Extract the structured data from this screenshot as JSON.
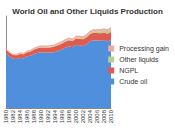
{
  "chart_data": {
    "type": "area",
    "title": "World Oil and Other Liquids Production",
    "categories": [
      "1980",
      null,
      "1982",
      null,
      "1984",
      null,
      "1986",
      null,
      "1988",
      null,
      "1990",
      null,
      "1992",
      null,
      "1994",
      null,
      "1996",
      null,
      "1998",
      null,
      "2000",
      null,
      "2002",
      null,
      "2004",
      null,
      "2006",
      null,
      "2008",
      null,
      "2010"
    ],
    "series": [
      {
        "name": "Crude oil",
        "color": "#4f8fdc",
        "values": [
          59.6,
          56.1,
          53.5,
          53.3,
          54.5,
          53.9,
          56.2,
          56.7,
          58.7,
          59.9,
          60.5,
          60.2,
          60.2,
          60.2,
          61.0,
          62.3,
          63.7,
          65.7,
          66.9,
          65.9,
          68.5,
          68.1,
          67.2,
          69.4,
          72.5,
          73.7,
          73.5,
          73.0,
          73.8,
          72.3,
          74.0
        ]
      },
      {
        "name": "NGPL",
        "color": "#e05a4e",
        "values": [
          3.9,
          4.0,
          4.0,
          4.1,
          4.3,
          4.4,
          4.5,
          4.6,
          4.8,
          5.0,
          5.2,
          5.4,
          5.6,
          5.8,
          6.0,
          6.2,
          6.4,
          6.6,
          6.7,
          6.8,
          7.1,
          7.3,
          7.4,
          7.6,
          7.8,
          8.0,
          8.1,
          8.2,
          8.4,
          8.5,
          8.9
        ]
      },
      {
        "name": "Other liquids",
        "color": "#b9cf8a",
        "values": [
          0.4,
          0.4,
          0.5,
          0.5,
          0.6,
          0.6,
          0.6,
          0.6,
          0.6,
          0.7,
          0.7,
          0.7,
          0.7,
          0.8,
          0.8,
          0.9,
          0.9,
          0.9,
          1.0,
          1.0,
          1.1,
          1.2,
          1.3,
          1.4,
          1.5,
          1.7,
          1.9,
          2.0,
          2.3,
          2.5,
          2.7
        ]
      },
      {
        "name": "Processing gain",
        "color": "#f2a7a0",
        "values": [
          1.0,
          1.0,
          1.1,
          1.1,
          1.1,
          1.2,
          1.2,
          1.3,
          1.3,
          1.4,
          1.4,
          1.5,
          1.5,
          1.6,
          1.6,
          1.7,
          1.7,
          1.8,
          1.8,
          1.9,
          1.9,
          2.0,
          2.0,
          2.1,
          2.1,
          2.2,
          2.2,
          2.3,
          2.3,
          2.3,
          2.4
        ]
      }
    ],
    "ylim": [
      0,
      100
    ],
    "stacked": true,
    "grid": false,
    "legend": "right",
    "tick_labels": "x"
  }
}
